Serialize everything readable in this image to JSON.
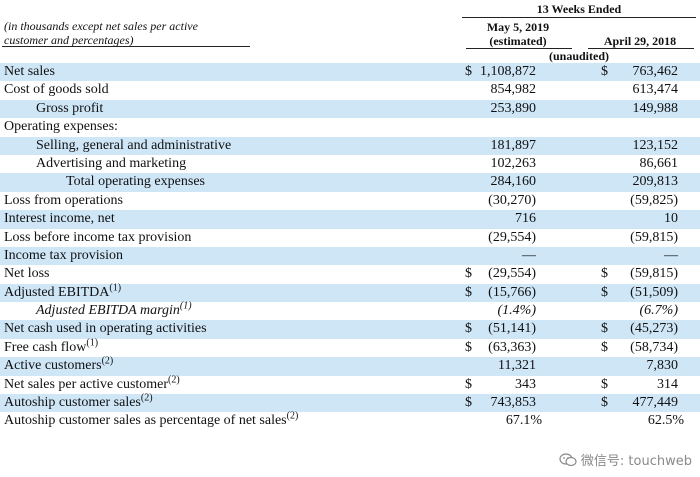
{
  "header": {
    "note": "(in thousands except net sales per active customer and percentages)",
    "period": "13 Weeks Ended",
    "col1": "May 5, 2019 (estimated)",
    "col1_line1": "May 5, 2019",
    "col1_line2": "(estimated)",
    "col2": "April 29, 2018",
    "unaudited": "(unaudited)"
  },
  "rows": [
    {
      "label": "Net sales",
      "indent": 0,
      "shade": true,
      "cur1": "$",
      "v1": "1,108,872",
      "cur2": "$",
      "v2": "763,462"
    },
    {
      "label": "Cost of goods sold",
      "indent": 0,
      "shade": false,
      "cur1": "",
      "v1": "854,982",
      "cur2": "",
      "v2": "613,474"
    },
    {
      "label": "Gross profit",
      "indent": 1,
      "shade": true,
      "cur1": "",
      "v1": "253,890",
      "cur2": "",
      "v2": "149,988"
    },
    {
      "label": "Operating expenses:",
      "indent": 0,
      "shade": false,
      "cur1": "",
      "v1": "",
      "cur2": "",
      "v2": ""
    },
    {
      "label": "Selling, general and administrative",
      "indent": 1,
      "shade": true,
      "cur1": "",
      "v1": "181,897",
      "cur2": "",
      "v2": "123,152"
    },
    {
      "label": "Advertising and marketing",
      "indent": 1,
      "shade": false,
      "cur1": "",
      "v1": "102,263",
      "cur2": "",
      "v2": "86,661"
    },
    {
      "label": "Total operating expenses",
      "indent": 2,
      "shade": true,
      "cur1": "",
      "v1": "284,160",
      "cur2": "",
      "v2": "209,813"
    },
    {
      "label": "Loss from operations",
      "indent": 0,
      "shade": false,
      "cur1": "",
      "v1": "(30,270)",
      "cur2": "",
      "v2": "(59,825)"
    },
    {
      "label": "Interest income, net",
      "indent": 0,
      "shade": true,
      "cur1": "",
      "v1": "716",
      "cur2": "",
      "v2": "10"
    },
    {
      "label": "Loss before income tax provision",
      "indent": 0,
      "shade": false,
      "cur1": "",
      "v1": "(29,554)",
      "cur2": "",
      "v2": "(59,815)"
    },
    {
      "label": "Income tax provision",
      "indent": 0,
      "shade": true,
      "cur1": "",
      "v1": "—",
      "cur2": "",
      "v2": "—"
    },
    {
      "label": "Net loss",
      "indent": 0,
      "shade": false,
      "cur1": "$",
      "v1": "(29,554)",
      "cur2": "$",
      "v2": "(59,815)"
    },
    {
      "label": "Adjusted EBITDA",
      "sup": "(1)",
      "indent": 0,
      "shade": true,
      "cur1": "$",
      "v1": "(15,766)",
      "cur2": "$",
      "v2": "(51,509)"
    },
    {
      "label": "Adjusted EBITDA margin",
      "sup": "(1)",
      "indent": 1,
      "italic": true,
      "shade": false,
      "cur1": "",
      "v1": "(1.4%)",
      "cur2": "",
      "v2": "(6.7%)"
    },
    {
      "label": "Net cash used in operating activities",
      "indent": 0,
      "shade": true,
      "cur1": "$",
      "v1": "(51,141)",
      "cur2": "$",
      "v2": "(45,273)"
    },
    {
      "label": "Free cash flow",
      "sup": "(1)",
      "indent": 0,
      "shade": false,
      "cur1": "$",
      "v1": "(63,363)",
      "cur2": "$",
      "v2": "(58,734)"
    },
    {
      "label": "Active customers",
      "sup": "(2)",
      "indent": 0,
      "shade": true,
      "cur1": "",
      "v1": "11,321",
      "cur2": "",
      "v2": "7,830"
    },
    {
      "label": "Net sales per active customer",
      "sup": "(2)",
      "indent": 0,
      "shade": false,
      "cur1": "$",
      "v1": "343",
      "cur2": "$",
      "v2": "314"
    },
    {
      "label": "Autoship customer sales",
      "sup": "(2)",
      "indent": 0,
      "shade": true,
      "cur1": "$",
      "v1": "743,853",
      "cur2": "$",
      "v2": "477,449"
    },
    {
      "label": "Autoship customer sales as percentage of net sales",
      "sup": "(2)",
      "indent": 0,
      "shade": false,
      "pct": true,
      "cur1": "",
      "v1": "67.1%",
      "cur2": "",
      "v2": "62.5%"
    }
  ],
  "watermark": {
    "text": "微信号: touchweb",
    "icon": "wechat-icon"
  }
}
